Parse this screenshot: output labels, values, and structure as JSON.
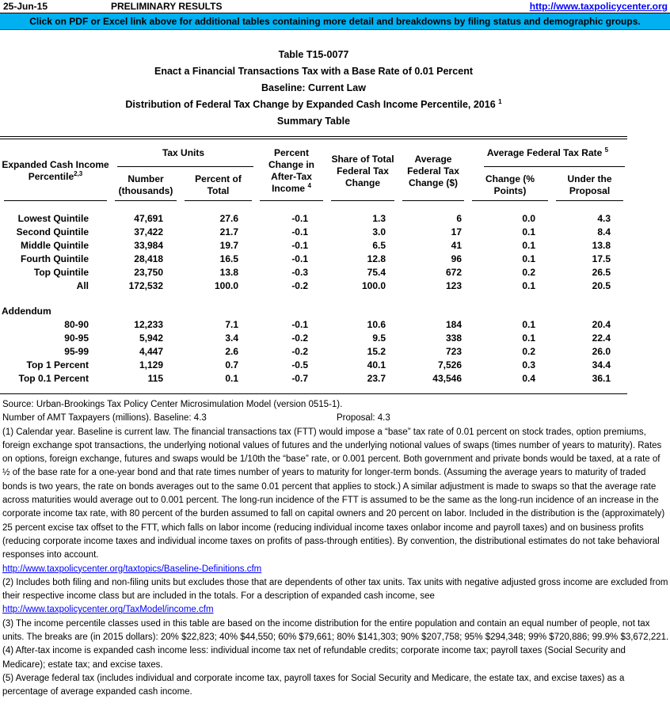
{
  "header": {
    "date": "25-Jun-15",
    "preliminary": "PRELIMINARY RESULTS",
    "site_link": "http://www.taxpolicycenter.org",
    "banner_text": "Click on PDF or Excel link above for additional tables containing more detail and breakdowns by filing status and demographic groups.",
    "banner_color": "#00B0F0",
    "link_color": "#0000FF"
  },
  "title": {
    "line1": "Table T15-0077",
    "line2": "Enact a Financial Transactions Tax with a Base Rate of 0.01 Percent",
    "line3": "Baseline: Current Law",
    "line4": "Distribution of Federal Tax Change by Expanded Cash Income Percentile, 2016",
    "line4_sup": "1",
    "line5": "Summary Table"
  },
  "table": {
    "col1": {
      "line1": "Expanded Cash Income",
      "line2": "Percentile",
      "sup": "2,3"
    },
    "group_tax_units": "Tax Units",
    "group_avg_rate": "Average Federal Tax Rate",
    "group_avg_rate_sup": "5",
    "headers": {
      "number": [
        "Number",
        "(thousands)"
      ],
      "percent_total": [
        "Percent of",
        "Total"
      ],
      "pct_change": [
        "Percent",
        "Change in",
        "After-Tax",
        "Income"
      ],
      "pct_change_sup": "4",
      "share": [
        "Share of Total",
        "Federal Tax",
        "Change"
      ],
      "avg_change": [
        "Average",
        "Federal Tax",
        "Change ($)"
      ],
      "change_points": [
        "Change (%",
        "Points)"
      ],
      "under_proposal": [
        "Under the",
        "Proposal"
      ]
    },
    "rows": [
      {
        "label": "Lowest Quintile",
        "cells": [
          "47,691",
          "27.6",
          "-0.1",
          "1.3",
          "6",
          "0.0",
          "4.3"
        ]
      },
      {
        "label": "Second Quintile",
        "cells": [
          "37,422",
          "21.7",
          "-0.1",
          "3.0",
          "17",
          "0.1",
          "8.4"
        ]
      },
      {
        "label": "Middle Quintile",
        "cells": [
          "33,984",
          "19.7",
          "-0.1",
          "6.5",
          "41",
          "0.1",
          "13.8"
        ]
      },
      {
        "label": "Fourth Quintile",
        "cells": [
          "28,418",
          "16.5",
          "-0.1",
          "12.8",
          "96",
          "0.1",
          "17.5"
        ]
      },
      {
        "label": "Top Quintile",
        "cells": [
          "23,750",
          "13.8",
          "-0.3",
          "75.4",
          "672",
          "0.2",
          "26.5"
        ]
      },
      {
        "label": "All",
        "cells": [
          "172,532",
          "100.0",
          "-0.2",
          "100.0",
          "123",
          "0.1",
          "20.5"
        ]
      }
    ],
    "addendum_label": "Addendum",
    "addendum_rows": [
      {
        "label": "80-90",
        "cells": [
          "12,233",
          "7.1",
          "-0.1",
          "10.6",
          "184",
          "0.1",
          "20.4"
        ]
      },
      {
        "label": "90-95",
        "cells": [
          "5,942",
          "3.4",
          "-0.2",
          "9.5",
          "338",
          "0.1",
          "22.4"
        ]
      },
      {
        "label": "95-99",
        "cells": [
          "4,447",
          "2.6",
          "-0.2",
          "15.2",
          "723",
          "0.2",
          "26.0"
        ]
      },
      {
        "label": "Top 1 Percent",
        "cells": [
          "1,129",
          "0.7",
          "-0.5",
          "40.1",
          "7,526",
          "0.3",
          "34.4"
        ]
      },
      {
        "label": "Top 0.1 Percent",
        "cells": [
          "115",
          "0.1",
          "-0.7",
          "23.7",
          "43,546",
          "0.4",
          "36.1"
        ]
      }
    ]
  },
  "footer": {
    "source": "Source: Urban-Brookings Tax Policy Center Microsimulation Model (version 0515-1).",
    "amt_line": "Number of AMT Taxpayers (millions).  Baseline: 4.3",
    "amt_proposal": "Proposal: 4.3",
    "footnotes": [
      {
        "type": "text",
        "text": "(1) Calendar year.  Baseline is current law.  The financial transactions tax (FTT) would impose a “base” tax rate of 0.01 percent on stock trades, option premiums, foreign exchange spot transactions, the underlying notional values of futures and the underlying notional values of swaps (times number of years to maturity).  Rates on options, foreign exchange, futures and swaps would be 1/10th the “base” rate, or 0.001 percent. Both government and private bonds would be taxed, at a rate of ½ of the base rate for a one-year bond and that rate times number of years to maturity for longer-term bonds. (Assuming the average years to maturity of traded bonds is two years, the rate on bonds averages out to the same 0.01 percent that applies to stock.)  A similar adjustment is made to swaps so that the average rate across maturities would average out to 0.001 percent.  The long-run incidence of the FTT is assumed to be the same as the long-run incidence of an increase in the corporate income tax rate, with 80 percent of the burden assumed to fall on capital owners and 20 percent on labor.  Included in the distribution is the (approximately) 25 percent excise tax offset to the FTT, which falls on labor income (reducing individual income taxes onlabor income and payroll taxes) and on business profits (reducing corporate income taxes and individual income taxes on profits of pass-through entities).  By convention, the distributional estimates do not take behavioral responses into account."
      },
      {
        "type": "link",
        "text": "http://www.taxpolicycenter.org/taxtopics/Baseline-Definitions.cfm"
      },
      {
        "type": "text",
        "text": "(2) Includes both filing and non-filing units but excludes those that are dependents of other tax units. Tax units with negative adjusted gross income are excluded from their respective income class but are included in the totals. For a description of expanded cash income, see"
      },
      {
        "type": "link",
        "text": "http://www.taxpolicycenter.org/TaxModel/income.cfm"
      },
      {
        "type": "text",
        "text": "(3) The income percentile classes used in this table are based on the income distribution for the entire population and contain an equal number of people, not tax units. The breaks are (in 2015 dollars): 20% $22,823; 40% $44,550; 60% $79,661; 80% $141,303; 90% $207,758; 95% $294,348; 99% $720,886; 99.9% $3,672,221."
      },
      {
        "type": "text",
        "text": "(4) After-tax income is expanded cash income less: individual income tax net of refundable credits; corporate income tax; payroll taxes (Social Security and Medicare); estate tax; and excise taxes."
      },
      {
        "type": "text",
        "text": "(5) Average federal tax (includes individual and corporate income tax, payroll taxes for Social Security and Medicare, the estate tax, and excise taxes) as a percentage of average expanded cash income."
      }
    ]
  }
}
